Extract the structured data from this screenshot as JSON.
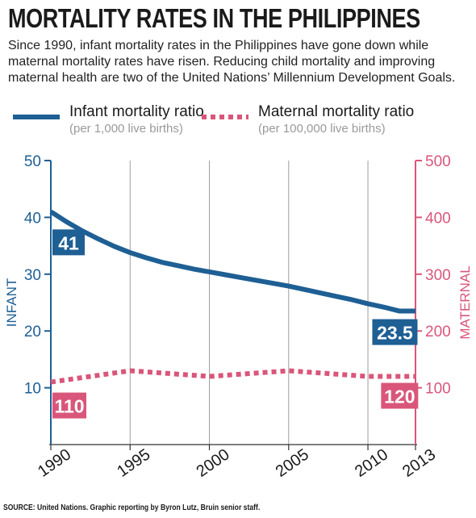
{
  "title": "MORTALITY RATES IN THE PHILIPPINES",
  "subtitle": "Since 1990, infant mortality rates in the Philippines have gone down while maternal mortality rates have risen. Reducing child mortality and improving maternal health are two of the United Nations’ Millennium Development Goals.",
  "legend": {
    "infant": {
      "label": "Infant mortality ratio",
      "sub": "(per 1,000 live births)"
    },
    "maternal": {
      "label": "Maternal mortality ratio",
      "sub": "(per 100,000 live births)"
    }
  },
  "source": "SOURCE: United Nations. Graphic reporting by Byron Lutz, Bruin senior staff.",
  "colors": {
    "infant": "#1e5f94",
    "maternal": "#d9567a",
    "grid": "#9e9e9e"
  },
  "chart_data": {
    "type": "line",
    "xlabel": "",
    "x_ticks": [
      "1990",
      "1995",
      "2000",
      "2005",
      "2010",
      "2013"
    ],
    "xlim": [
      1990,
      2013
    ],
    "left_axis": {
      "label": "INFANT",
      "ylim": [
        0,
        50
      ],
      "ticks": [
        "10",
        "20",
        "30",
        "40",
        "50"
      ]
    },
    "right_axis": {
      "label": "MATERNAL",
      "ylim": [
        0,
        500
      ],
      "ticks": [
        "100",
        "200",
        "300",
        "400",
        "500"
      ]
    },
    "series": [
      {
        "name": "Infant mortality ratio",
        "axis": "left",
        "style": "solid",
        "x": [
          1990,
          1991,
          1992,
          1993,
          1994,
          1995,
          1996,
          1997,
          1998,
          1999,
          2000,
          2001,
          2002,
          2003,
          2004,
          2005,
          2006,
          2007,
          2008,
          2009,
          2010,
          2011,
          2012,
          2013
        ],
        "values": [
          41,
          39.2,
          37.6,
          36.2,
          34.9,
          33.8,
          32.9,
          32.1,
          31.5,
          30.9,
          30.4,
          29.9,
          29.4,
          28.9,
          28.4,
          27.9,
          27.3,
          26.7,
          26.1,
          25.5,
          24.8,
          24.2,
          23.5,
          23.5
        ]
      },
      {
        "name": "Maternal mortality ratio",
        "axis": "right",
        "style": "dotted",
        "x": [
          1990,
          1995,
          2000,
          2005,
          2010,
          2013
        ],
        "values": [
          110,
          130,
          120,
          130,
          120,
          120
        ]
      }
    ],
    "annotations": [
      {
        "text": "41",
        "series": "infant"
      },
      {
        "text": "23.5",
        "series": "infant"
      },
      {
        "text": "110",
        "series": "maternal"
      },
      {
        "text": "120",
        "series": "maternal"
      }
    ],
    "grid": true
  }
}
